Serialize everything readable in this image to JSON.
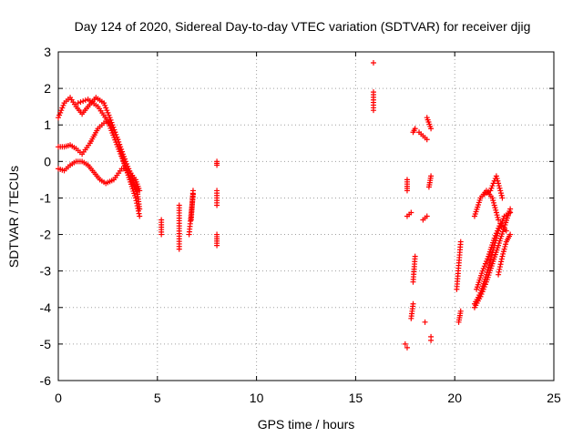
{
  "chart_data": {
    "type": "scatter",
    "title": "Day 124 of 2020, Sidereal Day-to-day VTEC variation (SDTVAR) for receiver djig",
    "xlabel": "GPS time / hours",
    "ylabel": "SDTVAR / TECUs",
    "xlim": [
      0,
      25
    ],
    "ylim": [
      -6,
      3
    ],
    "xticks": [
      "0",
      "5",
      "10",
      "15",
      "20",
      "25"
    ],
    "yticks": [
      "-6",
      "-5",
      "-4",
      "-3",
      "-2",
      "-1",
      "0",
      "1",
      "2",
      "3"
    ],
    "grid": true,
    "marker": "plus",
    "color": "#ff0000",
    "curves": [
      {
        "x": [
          0.0,
          0.3,
          0.6,
          0.9,
          1.2,
          1.5,
          1.9,
          2.3,
          2.6,
          3.0,
          3.3,
          3.6,
          3.9,
          4.1
        ],
        "y": [
          1.2,
          1.6,
          1.75,
          1.5,
          1.3,
          1.5,
          1.75,
          1.6,
          1.2,
          0.6,
          0.0,
          -0.5,
          -1.0,
          -1.5
        ]
      },
      {
        "x": [
          0.0,
          0.3,
          0.6,
          0.9,
          1.2,
          1.6,
          2.0,
          2.4,
          2.7,
          3.0,
          3.4,
          3.7,
          4.0,
          4.1
        ],
        "y": [
          0.4,
          0.4,
          0.45,
          0.35,
          0.2,
          0.5,
          0.9,
          1.1,
          1.0,
          0.6,
          0.0,
          -0.4,
          -0.9,
          -1.3
        ]
      },
      {
        "x": [
          0.0,
          0.3,
          0.6,
          0.9,
          1.2,
          1.5,
          1.8,
          2.1,
          2.4,
          2.8,
          3.2,
          3.5,
          3.9,
          4.1
        ],
        "y": [
          -0.2,
          -0.25,
          -0.1,
          0.0,
          0.0,
          -0.1,
          -0.3,
          -0.5,
          -0.6,
          -0.5,
          -0.2,
          -0.2,
          -0.5,
          -0.8
        ]
      },
      {
        "x": [
          1.0,
          1.5,
          2.0,
          2.5,
          3.0,
          3.5,
          4.0
        ],
        "y": [
          1.6,
          1.7,
          1.5,
          1.1,
          0.4,
          -0.3,
          -0.9
        ]
      },
      {
        "x": [
          21.0,
          21.3,
          21.6,
          21.9,
          22.2,
          22.5,
          22.8
        ],
        "y": [
          -4.0,
          -3.7,
          -3.3,
          -2.8,
          -2.3,
          -1.8,
          -1.3
        ]
      },
      {
        "x": [
          21.0,
          21.3,
          21.6,
          21.9,
          22.2,
          22.5,
          22.8
        ],
        "y": [
          -3.9,
          -3.6,
          -3.1,
          -2.5,
          -1.9,
          -1.5,
          -1.4
        ]
      },
      {
        "x": [
          21.1,
          21.4,
          21.7,
          22.0,
          22.3,
          22.6
        ],
        "y": [
          -3.5,
          -3.0,
          -2.6,
          -2.1,
          -1.7,
          -1.9
        ]
      },
      {
        "x": [
          21.0,
          21.3,
          21.6,
          21.9,
          22.2
        ],
        "y": [
          -1.5,
          -1.0,
          -0.8,
          -1.0,
          -1.6
        ]
      },
      {
        "x": [
          21.5,
          21.8,
          22.1,
          22.4
        ],
        "y": [
          -0.9,
          -0.8,
          -0.4,
          -1.0
        ]
      },
      {
        "x": [
          22.2,
          22.4,
          22.6,
          22.8
        ],
        "y": [
          -3.1,
          -2.6,
          -2.2,
          -2.0
        ]
      }
    ],
    "segments": [
      {
        "x": [
          5.2,
          5.2
        ],
        "y": [
          -2.0,
          -1.6
        ]
      },
      {
        "x": [
          6.1,
          6.1
        ],
        "y": [
          -2.4,
          -1.2
        ]
      },
      {
        "x": [
          6.6,
          6.8
        ],
        "y": [
          -2.0,
          -0.9
        ]
      },
      {
        "x": [
          6.7,
          6.8
        ],
        "y": [
          -1.6,
          -0.8
        ]
      },
      {
        "x": [
          8.0,
          8.0
        ],
        "y": [
          -2.3,
          -2.0
        ]
      },
      {
        "x": [
          8.0,
          8.0
        ],
        "y": [
          -1.2,
          -0.8
        ]
      },
      {
        "x": [
          8.0,
          8.0
        ],
        "y": [
          -0.1,
          0.0
        ]
      },
      {
        "x": [
          15.9,
          15.9
        ],
        "y": [
          1.4,
          1.9
        ]
      },
      {
        "x": [
          17.6,
          17.6
        ],
        "y": [
          -0.8,
          -0.5
        ]
      },
      {
        "x": [
          17.6,
          17.8
        ],
        "y": [
          -1.5,
          -1.4
        ]
      },
      {
        "x": [
          17.9,
          18.0
        ],
        "y": [
          -3.3,
          -2.6
        ]
      },
      {
        "x": [
          17.8,
          17.9
        ],
        "y": [
          -4.3,
          -3.9
        ]
      },
      {
        "x": [
          17.9,
          18.0
        ],
        "y": [
          0.8,
          0.9
        ]
      },
      {
        "x": [
          18.2,
          18.6
        ],
        "y": [
          0.8,
          0.6
        ]
      },
      {
        "x": [
          18.4,
          18.6
        ],
        "y": [
          -1.6,
          -1.5
        ]
      },
      {
        "x": [
          18.6,
          18.8
        ],
        "y": [
          1.2,
          0.9
        ]
      },
      {
        "x": [
          18.7,
          18.8
        ],
        "y": [
          -0.7,
          -0.4
        ]
      },
      {
        "x": [
          20.1,
          20.3
        ],
        "y": [
          -3.5,
          -2.2
        ]
      },
      {
        "x": [
          20.2,
          20.3
        ],
        "y": [
          -4.4,
          -4.1
        ]
      }
    ],
    "points": [
      {
        "x": 15.9,
        "y": 2.7
      },
      {
        "x": 17.5,
        "y": -5.0
      },
      {
        "x": 18.5,
        "y": -4.4
      },
      {
        "x": 18.8,
        "y": -4.9
      },
      {
        "x": 18.8,
        "y": -4.8
      },
      {
        "x": 17.6,
        "y": -5.1
      }
    ]
  }
}
